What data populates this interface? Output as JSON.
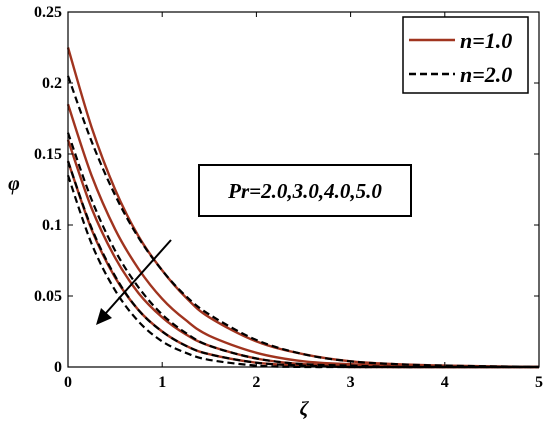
{
  "chart_data": {
    "type": "line",
    "xlabel": "ζ",
    "ylabel": "φ",
    "xlim": [
      0,
      5
    ],
    "ylim": [
      0,
      0.25
    ],
    "xticks": [
      "0",
      "1",
      "2",
      "3",
      "4",
      "5"
    ],
    "yticks": [
      "0",
      "0.05",
      "0.1",
      "0.15",
      "0.2",
      "0.25"
    ],
    "legend": [
      {
        "label": "n=1.0",
        "style": "solid",
        "color": "#A0341F"
      },
      {
        "label": "n=2.0",
        "style": "dashed",
        "color": "#000000"
      }
    ],
    "legend_position": "top-right",
    "annotation": "Pr=2.0,3.0,4.0,5.0",
    "series": [
      {
        "group": "n=1.0",
        "style": "solid",
        "color": "#A0341F",
        "x": [
          0,
          0.25,
          0.5,
          0.75,
          1,
          1.25,
          1.5,
          2,
          2.5,
          3,
          3.5,
          4,
          5
        ],
        "y": [
          0.225,
          0.169,
          0.125,
          0.092,
          0.068,
          0.049,
          0.035,
          0.018,
          0.009,
          0.004,
          0.002,
          0.001,
          0.0
        ]
      },
      {
        "group": "n=1.0",
        "style": "solid",
        "color": "#A0341F",
        "x": [
          0,
          0.25,
          0.5,
          0.75,
          1,
          1.25,
          1.5,
          2,
          2.5,
          3,
          3.5,
          4,
          5
        ],
        "y": [
          0.185,
          0.135,
          0.097,
          0.069,
          0.048,
          0.033,
          0.022,
          0.01,
          0.004,
          0.002,
          0.001,
          0.0,
          0.0
        ]
      },
      {
        "group": "n=1.0",
        "style": "solid",
        "color": "#A0341F",
        "x": [
          0,
          0.25,
          0.5,
          0.75,
          1,
          1.25,
          1.5,
          2,
          2.5,
          3,
          3.5,
          4,
          5
        ],
        "y": [
          0.16,
          0.112,
          0.077,
          0.052,
          0.035,
          0.023,
          0.015,
          0.006,
          0.002,
          0.001,
          0.0,
          0.0,
          0.0
        ]
      },
      {
        "group": "n=1.0",
        "style": "solid",
        "color": "#A0341F",
        "x": [
          0,
          0.25,
          0.5,
          0.75,
          1,
          1.25,
          1.5,
          2,
          2.5,
          3,
          3.5,
          4,
          5
        ],
        "y": [
          0.145,
          0.097,
          0.063,
          0.04,
          0.025,
          0.015,
          0.009,
          0.003,
          0.001,
          0.0,
          0.0,
          0.0,
          0.0
        ]
      },
      {
        "group": "n=2.0",
        "style": "dashed",
        "color": "#000000",
        "x": [
          0,
          0.25,
          0.5,
          0.75,
          1,
          1.25,
          1.5,
          2,
          2.5,
          3,
          3.5,
          4,
          5
        ],
        "y": [
          0.205,
          0.159,
          0.121,
          0.091,
          0.068,
          0.05,
          0.037,
          0.019,
          0.009,
          0.004,
          0.002,
          0.001,
          0.0
        ]
      },
      {
        "group": "n=2.0",
        "style": "dashed",
        "color": "#000000",
        "x": [
          0,
          0.25,
          0.5,
          0.75,
          1,
          1.25,
          1.5,
          2,
          2.5,
          3,
          3.5,
          4,
          5
        ],
        "y": [
          0.165,
          0.118,
          0.082,
          0.056,
          0.037,
          0.024,
          0.015,
          0.006,
          0.002,
          0.001,
          0.0,
          0.0,
          0.0
        ]
      },
      {
        "group": "n=2.0",
        "style": "dashed",
        "color": "#000000",
        "x": [
          0,
          0.25,
          0.5,
          0.75,
          1,
          1.25,
          1.5,
          2,
          2.5,
          3,
          3.5,
          4,
          5
        ],
        "y": [
          0.145,
          0.098,
          0.064,
          0.04,
          0.025,
          0.015,
          0.009,
          0.003,
          0.001,
          0.0,
          0.0,
          0.0,
          0.0
        ]
      },
      {
        "group": "n=2.0",
        "style": "dashed",
        "color": "#000000",
        "x": [
          0,
          0.25,
          0.5,
          0.75,
          1,
          1.25,
          1.5,
          2,
          2.5,
          3,
          3.5,
          4,
          5
        ],
        "y": [
          0.135,
          0.087,
          0.054,
          0.032,
          0.018,
          0.01,
          0.005,
          0.001,
          0.0,
          0.0,
          0.0,
          0.0,
          0.0
        ]
      }
    ]
  }
}
